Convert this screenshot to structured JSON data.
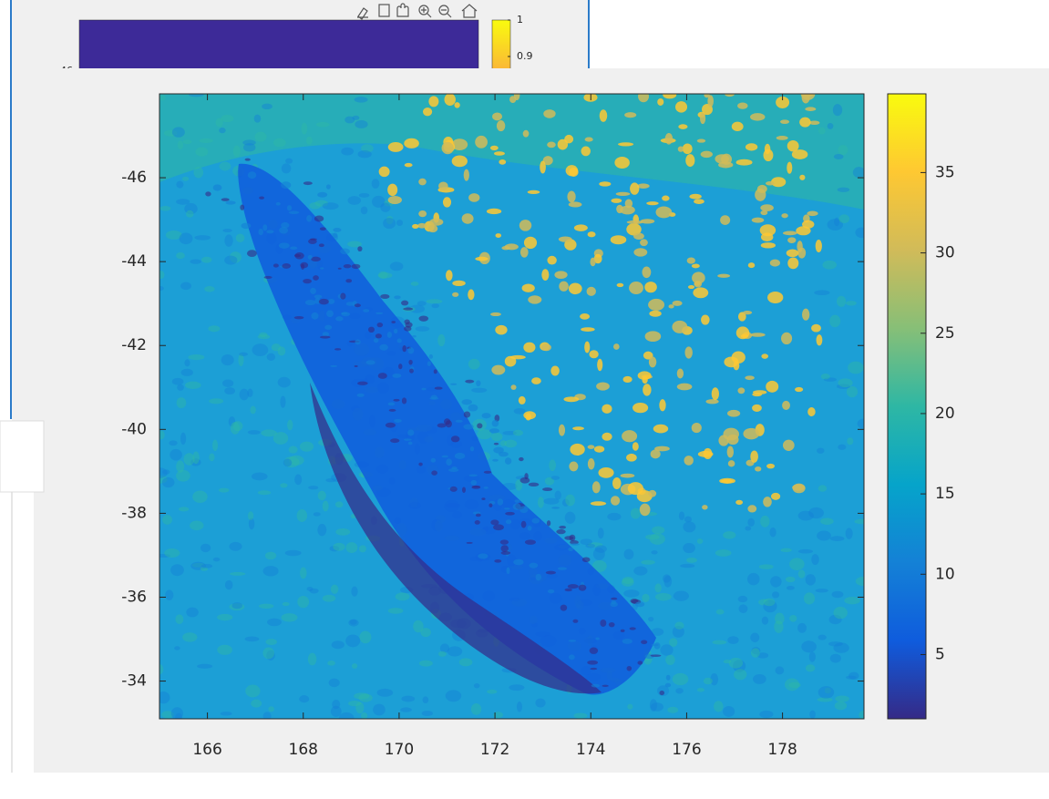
{
  "back_figure": {
    "yticks": [
      -46
    ],
    "cticks": [
      1,
      0.9
    ],
    "clim": [
      0,
      1
    ]
  },
  "chart_data": {
    "type": "image",
    "xlim": [
      165,
      179.7
    ],
    "xticks": [
      166,
      168,
      170,
      172,
      174,
      176,
      178
    ],
    "ylim": [
      -48,
      -33.1
    ],
    "y_reversed": true,
    "yticks": [
      -46,
      -44,
      -42,
      -40,
      -38,
      -36,
      -34
    ],
    "clim": [
      1,
      39.9
    ],
    "cticks": [
      5,
      10,
      15,
      20,
      25,
      30,
      35
    ],
    "colormap": [
      "#352a87",
      "#0f5cdd",
      "#1481d6",
      "#06a4ca",
      "#2eb7a4",
      "#87bf77",
      "#d1bb59",
      "#fec832",
      "#f9fb0e"
    ]
  }
}
